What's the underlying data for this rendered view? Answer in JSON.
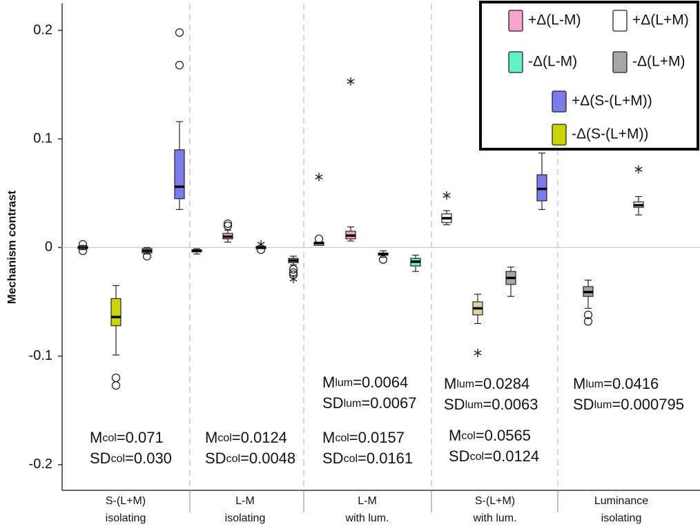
{
  "chart_data": {
    "type": "box",
    "y_label": "Mechanism contrast",
    "ylim": [
      -0.2236,
      0.2248
    ],
    "yticks": [
      -0.2,
      -0.1,
      0,
      0.1,
      0.2
    ],
    "zero_line": true,
    "categories": [
      [
        "S-(L+M)",
        "isolating"
      ],
      [
        "L-M",
        "isolating"
      ],
      [
        "L-M",
        "with lum."
      ],
      [
        "S-(L+M)",
        "with lum."
      ],
      [
        "Luminance",
        "isolating"
      ]
    ],
    "legend": [
      {
        "name": "+Δ(L-M)",
        "color": "#f9a3cc"
      },
      {
        "name": "+Δ(L+M)",
        "color": "#ffffff"
      },
      {
        "name": "-Δ(L-M)",
        "color": "#5ef2c6"
      },
      {
        "name": "-Δ(L+M)",
        "color": "#a6a6a6"
      },
      {
        "name": "+Δ(S-(L+M))",
        "color": "#7b7bea"
      },
      {
        "name": "-Δ(S-(L+M))",
        "color": "#c9d400"
      }
    ],
    "boxes": [
      [
        {
          "color": "#ffffff",
          "low": -0.002,
          "q1": -0.001,
          "median": 0,
          "q3": 0.001,
          "high": 0.002,
          "outliers": [
            0.003,
            -0.003
          ]
        },
        {
          "color": "#c9d400",
          "low": -0.099,
          "q1": -0.072,
          "median": -0.064,
          "q3": -0.047,
          "high": -0.035,
          "outliers": [
            -0.12,
            -0.127
          ]
        },
        {
          "color": "#a6a6a6",
          "low": -0.006,
          "q1": -0.005,
          "median": -0.003,
          "q3": -0.001,
          "high": 0.0,
          "outliers": [
            -0.008
          ]
        },
        {
          "color": "#7b7bea",
          "low": 0.035,
          "q1": 0.045,
          "median": 0.056,
          "q3": 0.09,
          "high": 0.116,
          "outliers": [
            0.198,
            0.168
          ]
        }
      ],
      [
        {
          "color": "#a6a6a6",
          "low": -0.006,
          "q1": -0.004,
          "median": -0.003,
          "q3": -0.002,
          "high": -0.001
        },
        {
          "color": "#f9a3cc",
          "low": 0.005,
          "q1": 0.008,
          "median": 0.01,
          "q3": 0.013,
          "high": 0.016,
          "outliers": [
            0.02,
            0.022
          ]
        },
        {
          "color": "#ffffff",
          "low": -0.001,
          "q1": -0.001,
          "median": 0,
          "q3": 0.001,
          "high": 0.001,
          "outliers": [
            -0.002
          ],
          "extremes": [
            0.003
          ]
        },
        {
          "color": "#a6a6a6",
          "low": -0.016,
          "q1": -0.014,
          "median": -0.012,
          "q3": -0.01,
          "high": -0.008,
          "outliers": [
            -0.02,
            -0.023,
            -0.025
          ],
          "extremes": [
            -0.029
          ]
        }
      ],
      [
        {
          "color": "#ffffff",
          "low": 0.002,
          "q1": 0.002,
          "median": 0.004,
          "q3": 0.005,
          "high": 0.005,
          "outliers": [
            0.008
          ],
          "extremes": [
            0.065
          ]
        },
        {
          "color": "#f9a3cc",
          "low": 0.006,
          "q1": 0.008,
          "median": 0.011,
          "q3": 0.015,
          "high": 0.019,
          "extremes": [
            0.153
          ]
        },
        {
          "color": "#a6a6a6",
          "low": -0.009,
          "q1": -0.007,
          "median": -0.006,
          "q3": -0.005,
          "high": -0.003,
          "outliers": [
            -0.011
          ]
        },
        {
          "color": "#5ef2c6",
          "low": -0.022,
          "q1": -0.017,
          "median": -0.013,
          "q3": -0.01,
          "high": -0.007
        }
      ],
      [
        {
          "color": "#ffffff",
          "low": 0.021,
          "q1": 0.023,
          "median": 0.027,
          "q3": 0.031,
          "high": 0.034,
          "extremes": [
            0.048
          ]
        },
        {
          "color": "#d9d3a3",
          "low": -0.07,
          "q1": -0.062,
          "median": -0.056,
          "q3": -0.05,
          "high": -0.043,
          "extremes": [
            -0.097
          ]
        },
        {
          "color": "#a6a6a6",
          "low": -0.045,
          "q1": -0.034,
          "median": -0.028,
          "q3": -0.022,
          "high": -0.018
        },
        {
          "color": "#7b7bea",
          "low": 0.035,
          "q1": 0.043,
          "median": 0.054,
          "q3": 0.067,
          "high": 0.087
        }
      ],
      [
        {
          "color": "#a6a6a6",
          "low": -0.056,
          "q1": -0.045,
          "median": -0.041,
          "q3": -0.036,
          "high": -0.03,
          "outliers": [
            -0.062,
            -0.068
          ]
        },
        {
          "color": "#ffffff",
          "low": 0.03,
          "q1": 0.037,
          "median": 0.039,
          "q3": 0.042,
          "high": 0.047,
          "extremes": [
            0.072
          ]
        }
      ]
    ],
    "annotations": [
      {
        "lines": [
          [
            "M",
            "col",
            "=0.071"
          ],
          [
            "SD",
            "col",
            "=0.030"
          ]
        ]
      },
      {
        "lines": [
          [
            "M",
            "col",
            "=0.0124"
          ],
          [
            "SD",
            "col",
            "=0.0048"
          ]
        ]
      },
      {
        "lines": [
          [
            "M",
            "lum",
            "=0.0064"
          ],
          [
            "SD",
            "lum",
            "=0.0067"
          ]
        ]
      },
      {
        "lines": [
          [
            "M",
            "col",
            "=0.0157"
          ],
          [
            "SD",
            "col",
            "=0.0161"
          ]
        ]
      },
      {
        "lines": [
          [
            "M",
            "lum",
            "=0.0284"
          ],
          [
            "SD",
            "lum",
            "=0.0063"
          ]
        ]
      },
      {
        "lines": [
          [
            "M",
            "col",
            "=0.0565"
          ],
          [
            "SD",
            "col",
            "=0.0124"
          ]
        ]
      },
      {
        "lines": [
          [
            "M",
            "lum",
            "=0.0416"
          ],
          [
            "SD",
            "lum",
            "=0.000795"
          ]
        ]
      }
    ]
  }
}
